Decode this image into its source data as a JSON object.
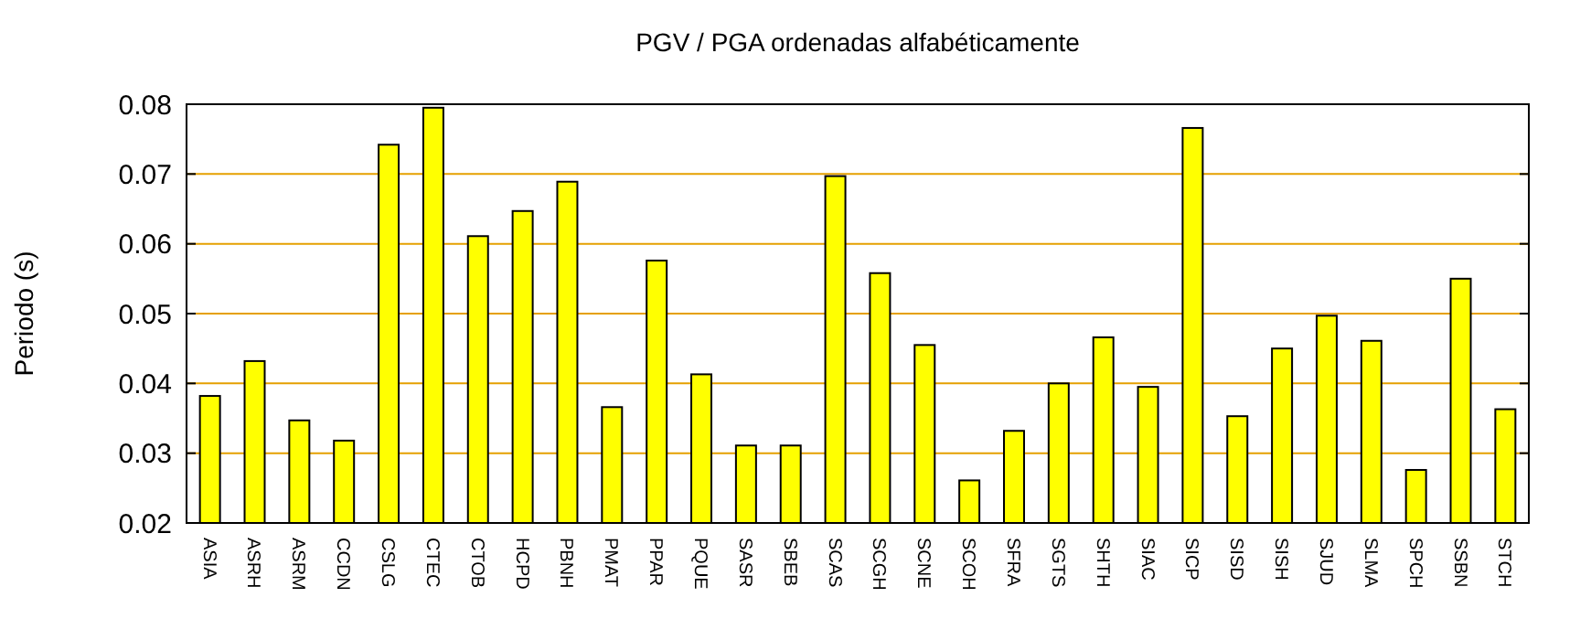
{
  "chart_data": {
    "type": "bar",
    "title": "PGV / PGA ordenadas alfabéticamente",
    "ylabel": "Periodo (s)",
    "categories": [
      "ASIA",
      "ASRH",
      "ASRM",
      "CCDN",
      "CSLG",
      "CTEC",
      "CTOB",
      "HCPD",
      "PBNH",
      "PMAT",
      "PPAR",
      "PQUE",
      "SASR",
      "SBEB",
      "SCAS",
      "SCGH",
      "SCNE",
      "SCOH",
      "SFRA",
      "SGTS",
      "SHTH",
      "SIAC",
      "SICP",
      "SISD",
      "SISH",
      "SJUD",
      "SLMA",
      "SPCH",
      "SSBN",
      "STCH"
    ],
    "values": [
      0.0382,
      0.0432,
      0.0347,
      0.0318,
      0.0742,
      0.0795,
      0.0611,
      0.0647,
      0.0689,
      0.0366,
      0.0576,
      0.0413,
      0.0311,
      0.0311,
      0.0697,
      0.0558,
      0.0455,
      0.0261,
      0.0332,
      0.04,
      0.0466,
      0.0395,
      0.0766,
      0.0353,
      0.045,
      0.0497,
      0.0461,
      0.0276,
      0.055,
      0.0363
    ],
    "color": "#ffff00",
    "ylim": [
      0.02,
      0.08
    ],
    "yticks": [
      {
        "value": 0.02,
        "label": "0.02"
      },
      {
        "value": 0.03,
        "label": "0.03"
      },
      {
        "value": 0.04,
        "label": "0.04"
      },
      {
        "value": 0.05,
        "label": "0.05"
      },
      {
        "value": 0.06,
        "label": "0.06"
      },
      {
        "value": 0.07,
        "label": "0.07"
      },
      {
        "value": 0.08,
        "label": "0.08"
      }
    ],
    "grid": "y"
  }
}
